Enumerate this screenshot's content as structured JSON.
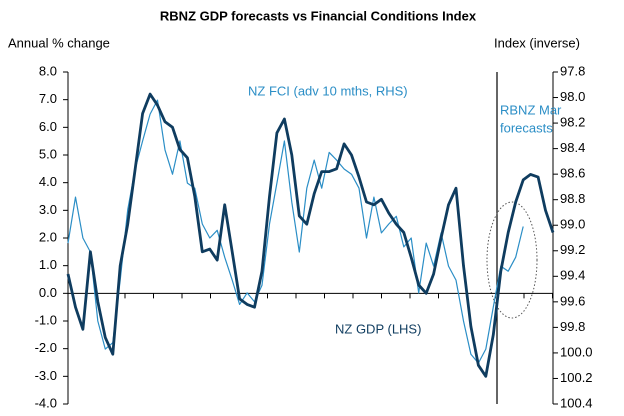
{
  "chart_data": {
    "type": "line",
    "title": "RBNZ GDP forecasts vs Financial Conditions Index",
    "y_label": "Annual % change",
    "y2_label": "Index (inverse)",
    "annotations": [
      "NZ FCI (adv 10 mths, RHS)",
      "NZ GDP (LHS)",
      [
        "RBNZ Mar",
        "forecasts"
      ]
    ],
    "ylim": [
      -4,
      8
    ],
    "yticks": [
      {
        "value": -4,
        "label": "-4.0"
      },
      {
        "value": -3,
        "label": "-3.0"
      },
      {
        "value": -2,
        "label": "-2.0"
      },
      {
        "value": -1,
        "label": "-1.0"
      },
      {
        "value": 0,
        "label": "0.0"
      },
      {
        "value": 1,
        "label": "1.0"
      },
      {
        "value": 2,
        "label": "2.0"
      },
      {
        "value": 3,
        "label": "3.0"
      },
      {
        "value": 4,
        "label": "4.0"
      },
      {
        "value": 5,
        "label": "5.0"
      },
      {
        "value": 6,
        "label": "6.0"
      },
      {
        "value": 7,
        "label": "7.0"
      },
      {
        "value": 8,
        "label": "8.0"
      }
    ],
    "y2lim": [
      100.4,
      97.8
    ],
    "y2ticks": [
      97.8,
      {
        "value": 98,
        "label": "98.0"
      },
      98.2,
      98.4,
      98.6,
      98.8,
      {
        "value": 99,
        "label": "99.0"
      },
      99.2,
      99.4,
      99.6,
      99.8,
      {
        "value": 100,
        "label": "100.0"
      },
      100.2,
      100.4
    ],
    "series": [
      {
        "name": "NZ GDP",
        "color": "#0f3c5f",
        "values": [
          0.7,
          -0.5,
          -1.3,
          1.5,
          -0.3,
          -1.6,
          -2.2,
          1.0,
          2.5,
          4.5,
          6.5,
          7.2,
          6.8,
          6.2,
          6.0,
          5.2,
          4.9,
          3.5,
          1.5,
          1.6,
          1.2,
          3.2,
          1.5,
          -0.2,
          -0.4,
          -0.5,
          0.8,
          3.5,
          5.8,
          6.3,
          5.0,
          2.8,
          2.5,
          3.6,
          4.4,
          4.4,
          4.5,
          5.4,
          5.0,
          4.2,
          3.3,
          3.2,
          3.4,
          2.9,
          2.5,
          2.2,
          1.3,
          0.3,
          0.0,
          0.7,
          2.0,
          3.2,
          3.8,
          1.0,
          -1.2,
          -2.6,
          -3.0,
          -1.5,
          0.8,
          2.2,
          3.3,
          4.1,
          4.3,
          4.2,
          3.0,
          2.2
        ]
      },
      {
        "name": "NZ FCI",
        "color": "#2b8ec6",
        "axis": "y2",
        "values": [
          99.14,
          98.78,
          99.1,
          99.21,
          99.75,
          99.97,
          99.92,
          99.43,
          98.88,
          98.56,
          98.34,
          98.13,
          98.02,
          98.41,
          98.6,
          98.34,
          98.67,
          98.71,
          98.99,
          99.1,
          99.04,
          99.25,
          99.43,
          99.62,
          99.53,
          99.6,
          99.47,
          98.99,
          98.67,
          98.34,
          98.82,
          99.21,
          98.71,
          98.49,
          98.71,
          98.43,
          98.49,
          98.56,
          98.6,
          98.71,
          99.1,
          98.78,
          99.06,
          98.99,
          98.93,
          99.17,
          99.1,
          99.53,
          99.14,
          99.32,
          99.06,
          99.32,
          99.43,
          99.75,
          100.01,
          100.08,
          99.97,
          99.64,
          99.32,
          99.36,
          99.25,
          99.01,
          null,
          null,
          null,
          null
        ]
      }
    ]
  }
}
